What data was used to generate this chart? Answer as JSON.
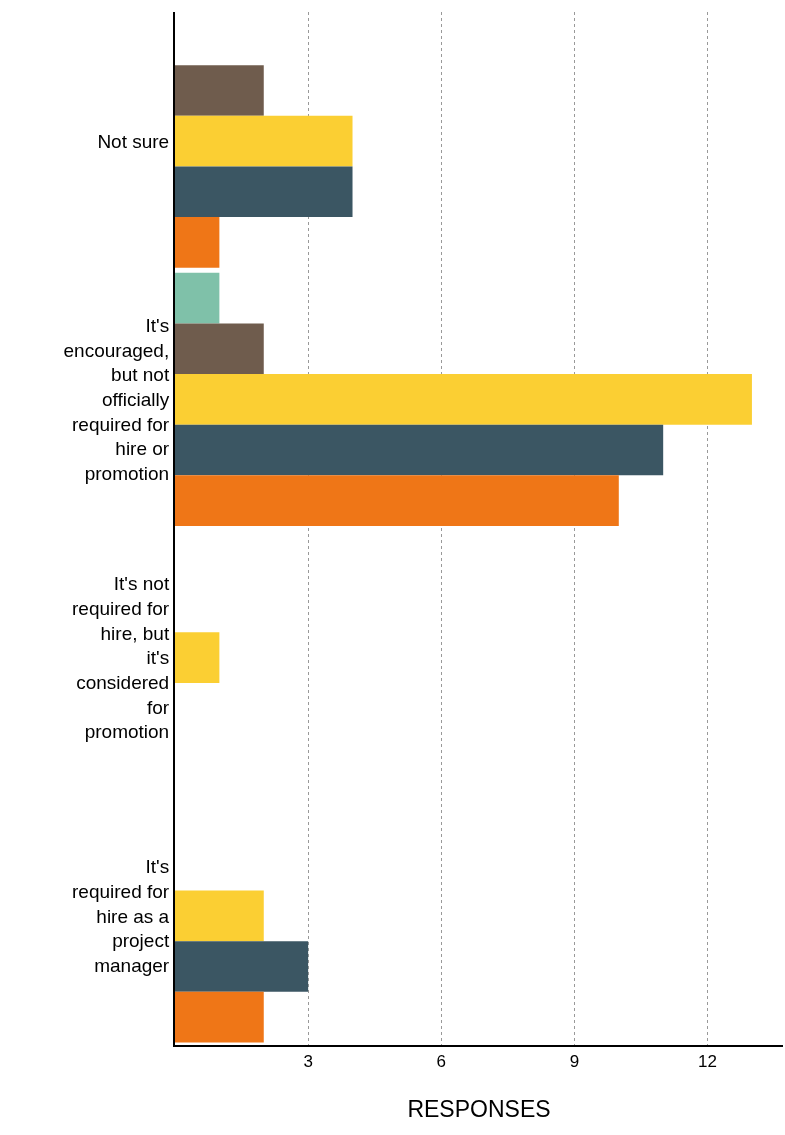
{
  "chart_data": {
    "type": "bar",
    "orientation": "horizontal",
    "xlabel": "RESPONSES",
    "categories": [
      "Not sure",
      "It's encouraged, but not officially required for hire or promotion",
      "It's not required for hire, but it's considered for promotion",
      "It's required for hire as a project manager"
    ],
    "series": [
      {
        "color": "#7fc1a9",
        "values": [
          0,
          1,
          0,
          0
        ]
      },
      {
        "color": "#6f5c4d",
        "values": [
          2,
          2,
          0,
          0
        ]
      },
      {
        "color": "#fbcf33",
        "values": [
          4,
          13,
          1,
          2
        ]
      },
      {
        "color": "#3b5663",
        "values": [
          4,
          11,
          0,
          3
        ]
      },
      {
        "color": "#ef7617",
        "values": [
          1,
          10,
          0,
          2
        ]
      }
    ],
    "xlim": [
      0,
      13.7
    ],
    "xticks": [
      3,
      6,
      9,
      12
    ],
    "grid": "x"
  }
}
